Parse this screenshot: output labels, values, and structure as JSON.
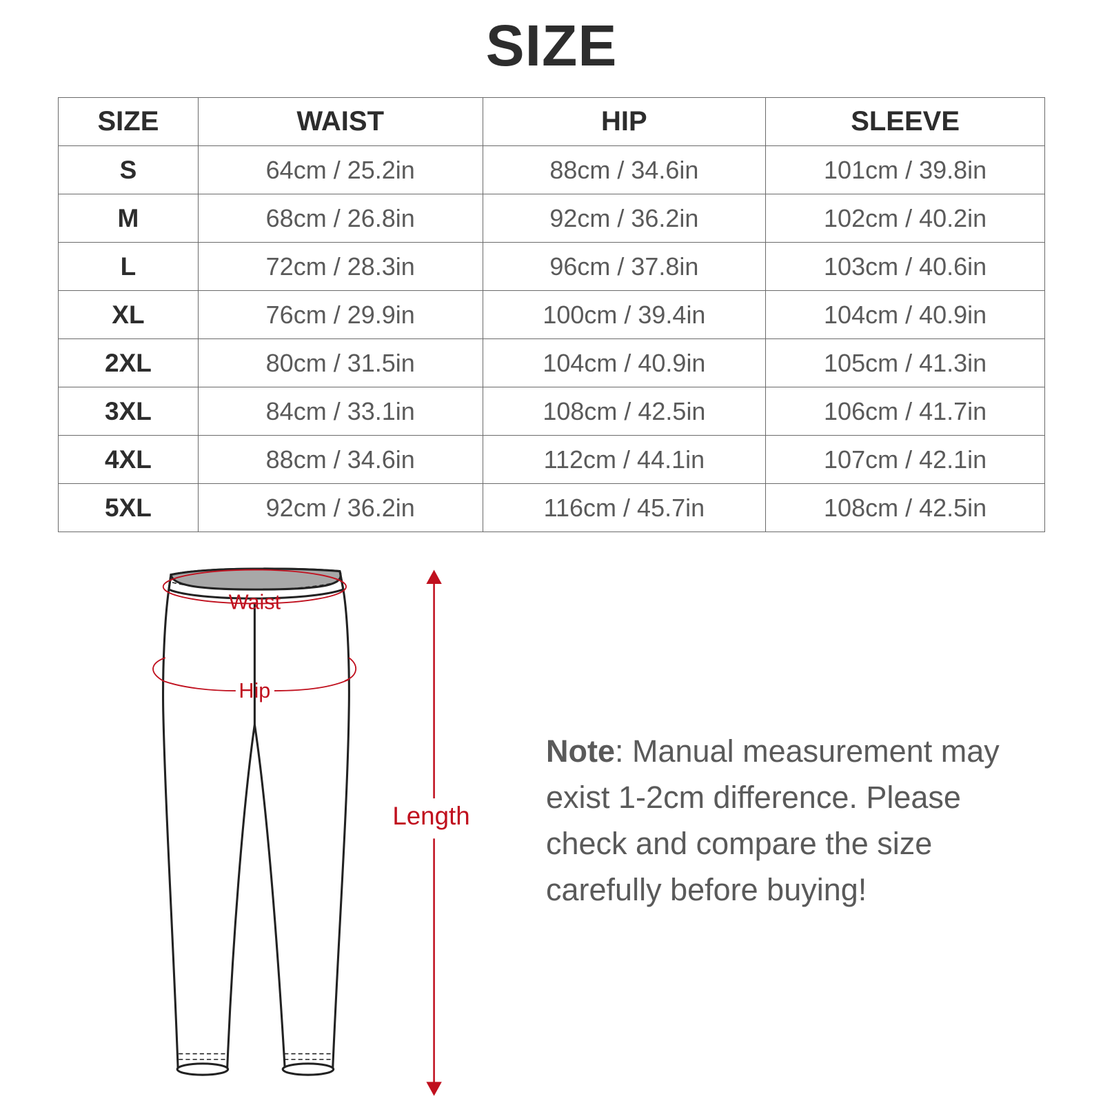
{
  "title": "SIZE",
  "table": {
    "headers": [
      "SIZE",
      "WAIST",
      "HIP",
      "SLEEVE"
    ],
    "rows": [
      [
        "S",
        "64cm / 25.2in",
        "88cm / 34.6in",
        "101cm / 39.8in"
      ],
      [
        "M",
        "68cm / 26.8in",
        "92cm / 36.2in",
        "102cm / 40.2in"
      ],
      [
        "L",
        "72cm / 28.3in",
        "96cm / 37.8in",
        "103cm / 40.6in"
      ],
      [
        "XL",
        "76cm / 29.9in",
        "100cm / 39.4in",
        "104cm / 40.9in"
      ],
      [
        "2XL",
        "80cm / 31.5in",
        "104cm / 40.9in",
        "105cm / 41.3in"
      ],
      [
        "3XL",
        "84cm / 33.1in",
        "108cm / 42.5in",
        "106cm / 41.7in"
      ],
      [
        "4XL",
        "88cm / 34.6in",
        "112cm / 44.1in",
        "107cm / 42.1in"
      ],
      [
        "5XL",
        "92cm / 36.2in",
        "116cm / 45.7in",
        "108cm / 42.5in"
      ]
    ]
  },
  "diagram": {
    "waist_label": "Waist",
    "hip_label": "Hip",
    "length_label": "Length",
    "accent_color": "#c0101e"
  },
  "note": {
    "label": "Note",
    "text": ": Manual measurement may exist 1-2cm difference. Please check and compare the size carefully before buying!"
  }
}
